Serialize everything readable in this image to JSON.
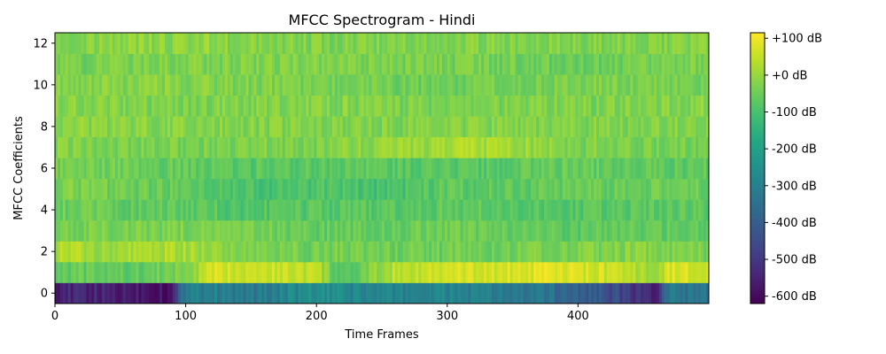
{
  "chart_data": {
    "type": "heatmap",
    "title": "MFCC Spectrogram - Hindi",
    "xlabel": "Time Frames",
    "ylabel": "MFCC Coefficients",
    "xlim": [
      0,
      500
    ],
    "ylim": [
      -0.5,
      12.5
    ],
    "x_ticks": [
      0,
      100,
      200,
      300,
      400
    ],
    "y_ticks": [
      0,
      2,
      4,
      6,
      8,
      10,
      12
    ],
    "n_frames": 500,
    "n_coefficients": 13,
    "colormap": "viridis",
    "colorbar": {
      "vmin": -620,
      "vmax": 115,
      "ticks": [
        100,
        0,
        -100,
        -200,
        -300,
        -400,
        -500,
        -600
      ],
      "tick_labels": [
        "+100 dB",
        "+0 dB",
        "-100 dB",
        "-200 dB",
        "-300 dB",
        "-400 dB",
        "-500 dB",
        "-600 dB"
      ]
    },
    "coefficient_profiles": [
      {
        "coefficient": 0,
        "frames": [
          0,
          60,
          90,
          100,
          150,
          200,
          250,
          300,
          340,
          380,
          420,
          460,
          470,
          500
        ],
        "db": [
          -540,
          -560,
          -580,
          -280,
          -330,
          -260,
          -300,
          -290,
          -320,
          -350,
          -430,
          -560,
          -320,
          -360
        ]
      },
      {
        "coefficient": 1,
        "frames": [
          0,
          60,
          100,
          120,
          150,
          200,
          220,
          260,
          300,
          380,
          420,
          460,
          470,
          500
        ],
        "db": [
          -60,
          -70,
          -30,
          60,
          70,
          40,
          -110,
          40,
          60,
          75,
          60,
          0,
          75,
          65
        ]
      },
      {
        "coefficient": 2,
        "frames": [
          0,
          40,
          100,
          150,
          200,
          300,
          400,
          460,
          500
        ],
        "db": [
          25,
          10,
          20,
          -30,
          -40,
          -50,
          -30,
          -20,
          -40
        ]
      },
      {
        "coefficient": 3,
        "frames": [
          0,
          100,
          200,
          300,
          400,
          500
        ],
        "db": [
          -40,
          -30,
          -60,
          -50,
          -70,
          -60
        ]
      },
      {
        "coefficient": 4,
        "frames": [
          0,
          100,
          150,
          200,
          300,
          400,
          500
        ],
        "db": [
          -50,
          -70,
          -90,
          -80,
          -70,
          -80,
          -70
        ]
      },
      {
        "coefficient": 5,
        "frames": [
          0,
          100,
          150,
          200,
          250,
          300,
          400,
          500
        ],
        "db": [
          -30,
          -60,
          -100,
          -90,
          -110,
          -70,
          -60,
          -50
        ]
      },
      {
        "coefficient": 6,
        "frames": [
          0,
          100,
          150,
          200,
          300,
          400,
          500
        ],
        "db": [
          -40,
          -60,
          -80,
          -70,
          -80,
          -60,
          -70
        ]
      },
      {
        "coefficient": 7,
        "frames": [
          0,
          100,
          200,
          300,
          320,
          400,
          500
        ],
        "db": [
          -20,
          -40,
          -30,
          10,
          30,
          -30,
          -40
        ]
      },
      {
        "coefficient": 8,
        "frames": [
          0,
          100,
          200,
          300,
          400,
          500
        ],
        "db": [
          -10,
          -20,
          -30,
          -20,
          -30,
          -20
        ]
      },
      {
        "coefficient": 9,
        "frames": [
          0,
          100,
          200,
          300,
          400,
          500
        ],
        "db": [
          -20,
          -30,
          -20,
          -40,
          -30,
          -20
        ]
      },
      {
        "coefficient": 10,
        "frames": [
          0,
          100,
          200,
          300,
          400,
          500
        ],
        "db": [
          -30,
          -20,
          -40,
          -50,
          -30,
          -40
        ]
      },
      {
        "coefficient": 11,
        "frames": [
          0,
          100,
          200,
          300,
          400,
          500
        ],
        "db": [
          -40,
          -30,
          -30,
          -40,
          -50,
          -30
        ]
      },
      {
        "coefficient": 12,
        "frames": [
          0,
          100,
          200,
          300,
          400,
          500
        ],
        "db": [
          -20,
          -10,
          -30,
          -20,
          -30,
          -20
        ]
      }
    ]
  }
}
